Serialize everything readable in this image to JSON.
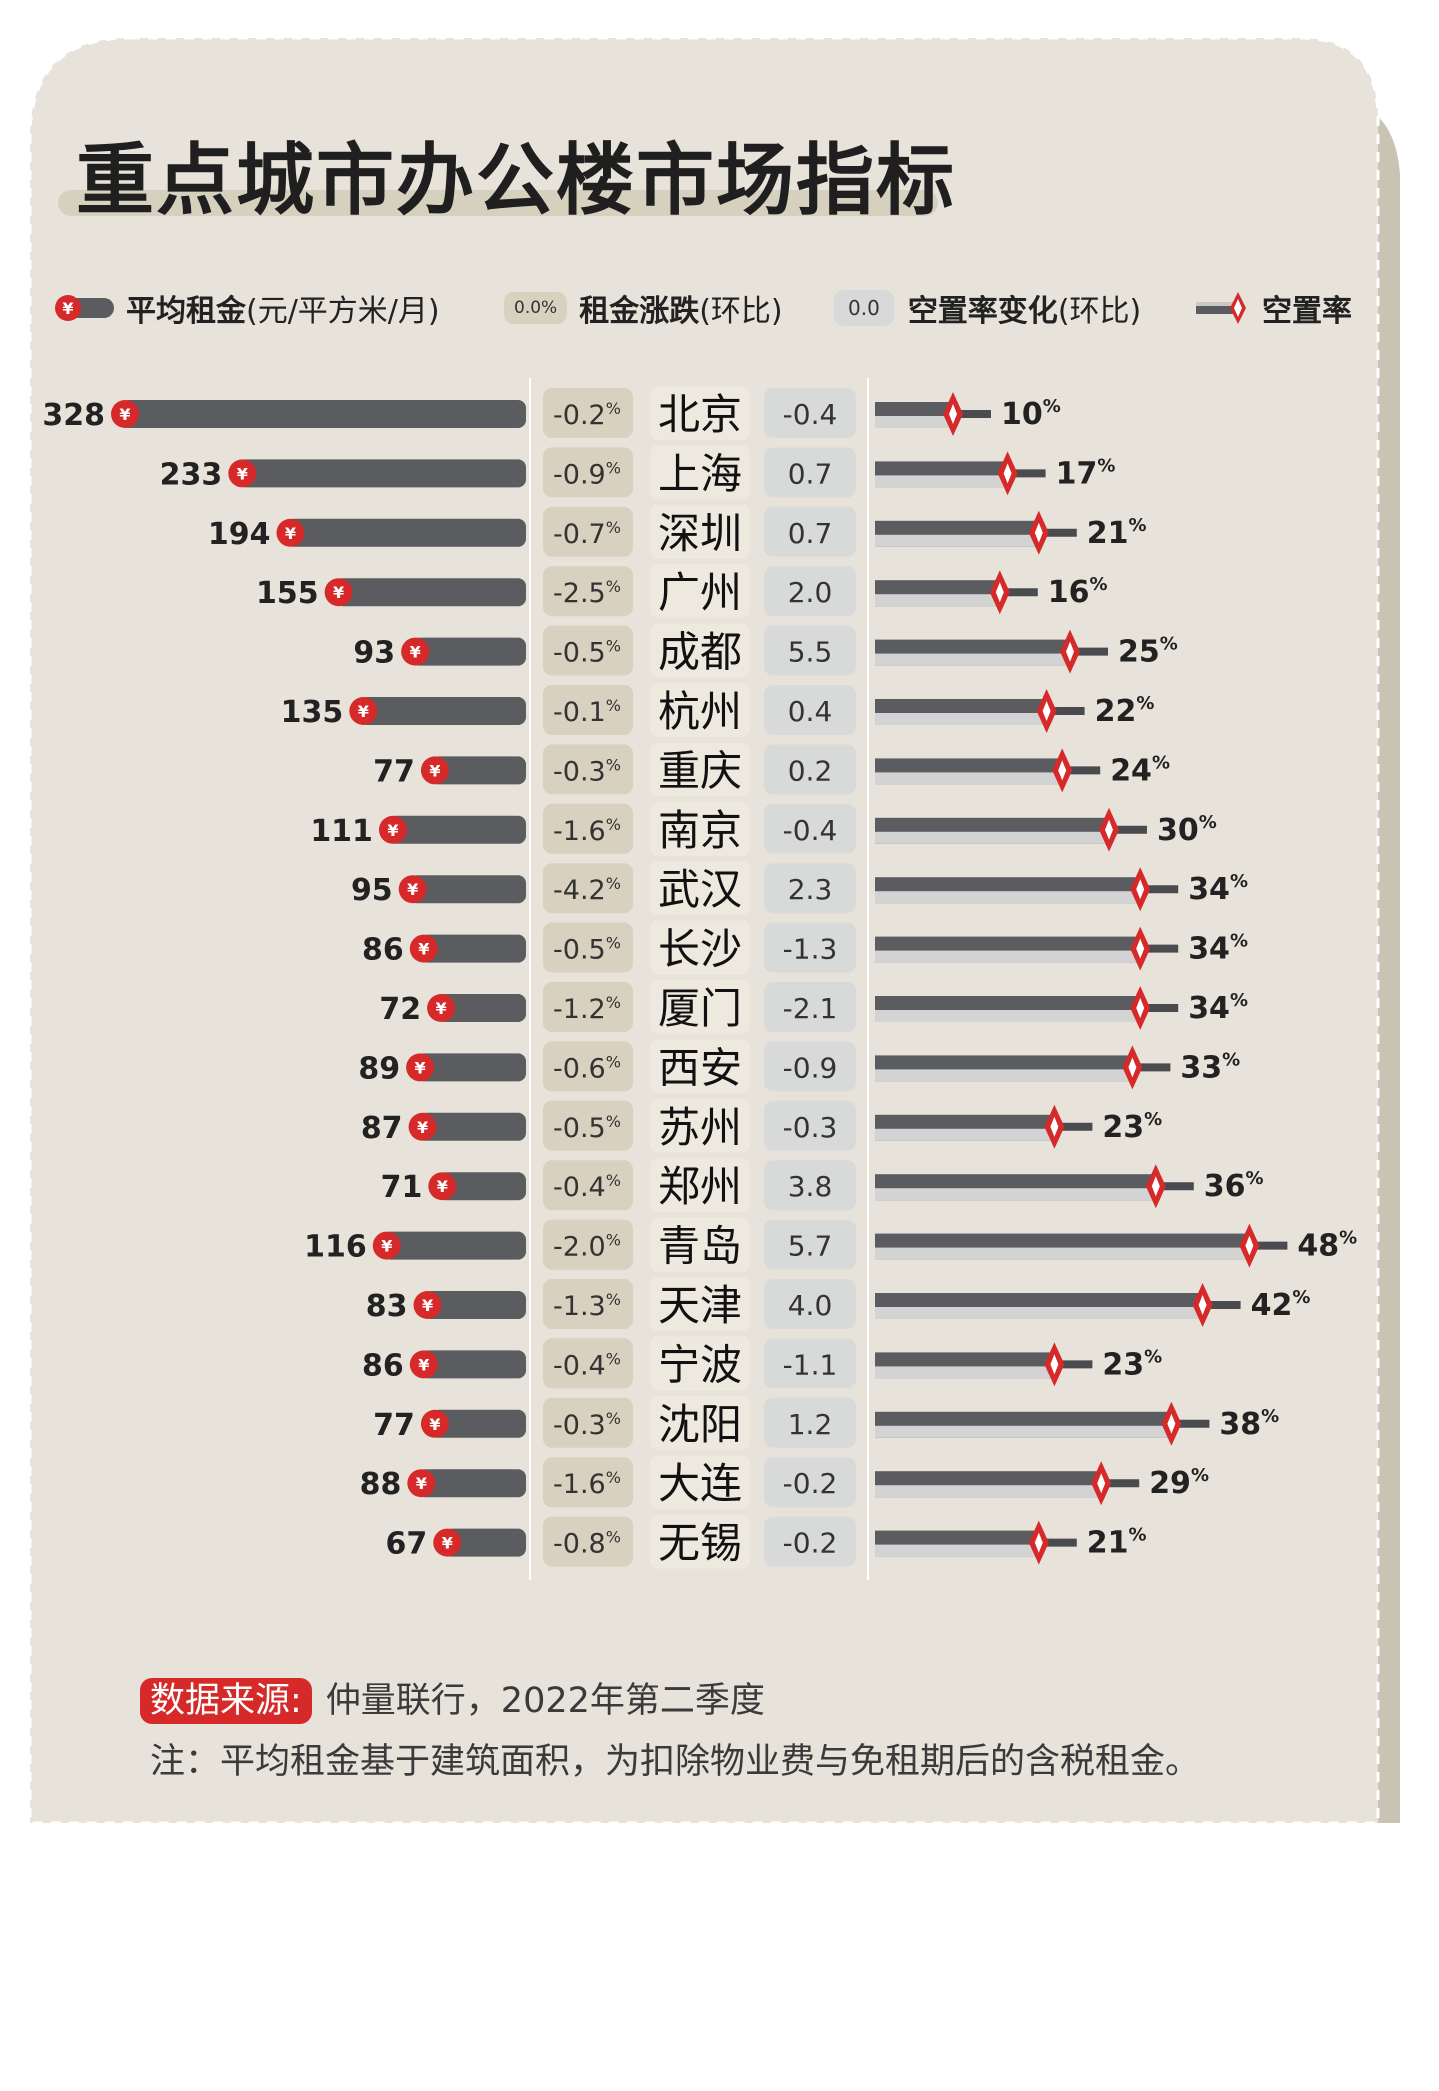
{
  "title": "重点城市办公楼市场指标",
  "legend": {
    "rent": "平均租金",
    "rent_unit": "(元/平方米/月)",
    "rent_change_sample": "0.0%",
    "rent_change": "租金涨跌",
    "rent_change_note": "(环比)",
    "vacancy_change_sample": "0.0",
    "vacancy_change": "空置率变化",
    "vacancy_change_note": "(环比)",
    "vacancy": "空置率"
  },
  "footer": {
    "source_label": "数据来源:",
    "source_text": "仲量联行，2022年第二季度",
    "note": "注：平均租金基于建筑面积，为扣除物业费与免租期后的含税租金。"
  },
  "colors": {
    "background": "#e7e3da",
    "rent_bar": "#5b5c60",
    "accent_red": "#d62a2a",
    "rent_change_pill": "#d8d1bf",
    "vacancy_change_pill": "#d8dad9",
    "vacancy_track": "#d3d3d3"
  },
  "chart_data": {
    "type": "table",
    "columns": [
      "平均租金(元/平方米/月)",
      "租金涨跌(环比)",
      "城市",
      "空置率变化(环比)",
      "空置率"
    ],
    "categories": [
      "北京",
      "上海",
      "深圳",
      "广州",
      "成都",
      "杭州",
      "重庆",
      "南京",
      "武汉",
      "长沙",
      "厦门",
      "西安",
      "苏州",
      "郑州",
      "青岛",
      "天津",
      "宁波",
      "沈阳",
      "大连",
      "无锡"
    ],
    "series": [
      {
        "name": "平均租金",
        "values": [
          328,
          233,
          194,
          155,
          93,
          135,
          77,
          111,
          95,
          86,
          72,
          89,
          87,
          71,
          116,
          83,
          86,
          77,
          88,
          67
        ]
      },
      {
        "name": "租金涨跌",
        "values": [
          -0.2,
          -0.9,
          -0.7,
          -2.5,
          -0.5,
          -0.1,
          -0.3,
          -1.6,
          -4.2,
          -0.5,
          -1.2,
          -0.6,
          -0.5,
          -0.4,
          -2.0,
          -1.3,
          -0.4,
          -0.3,
          -1.6,
          -0.8
        ]
      },
      {
        "name": "空置率变化",
        "values": [
          "-0.4",
          "0.7",
          "0.7",
          "2.0",
          "5.5",
          "0.4",
          "0.2",
          "-0.4",
          "2.3",
          "-1.3",
          "-2.1",
          "-0.9",
          "-0.3",
          "3.8",
          "5.7",
          "4.0",
          "-1.1",
          "1.2",
          "-0.2",
          "-0.2"
        ]
      },
      {
        "name": "空置率",
        "values": [
          10,
          17,
          21,
          16,
          25,
          22,
          24,
          30,
          34,
          34,
          34,
          33,
          23,
          36,
          48,
          42,
          23,
          38,
          29,
          21
        ]
      }
    ]
  }
}
